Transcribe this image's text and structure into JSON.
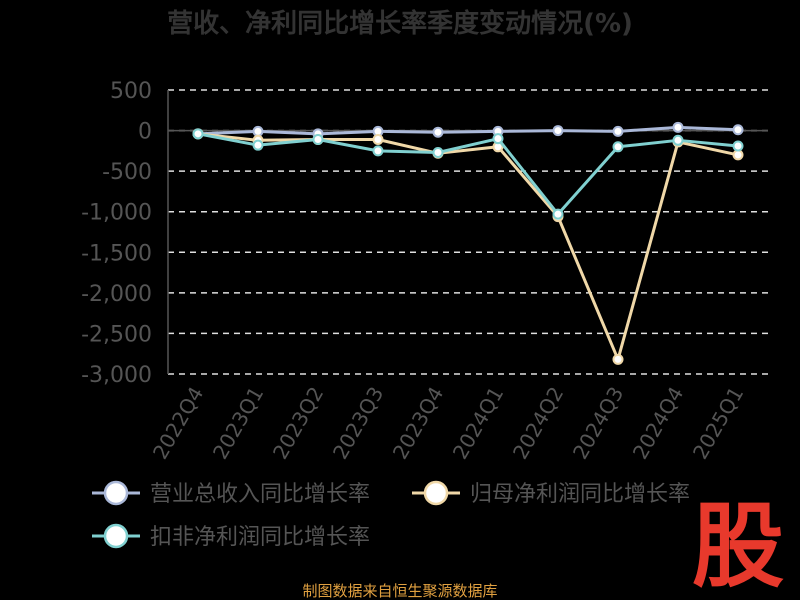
{
  "chart_data": {
    "type": "line",
    "title": "营收、净利同比增长率季度变动情况(%)",
    "categories": [
      "2022Q4",
      "2023Q1",
      "2023Q2",
      "2023Q3",
      "2023Q4",
      "2024Q1",
      "2024Q2",
      "2024Q3",
      "2024Q4",
      "2025Q1"
    ],
    "y_ticks": [
      "500",
      "0",
      "-500",
      "-1,000",
      "-1,500",
      "-2,000",
      "-2,500",
      "-3,000"
    ],
    "ylim": [
      -3000,
      500
    ],
    "grid": true,
    "legend_position": "bottom",
    "series": [
      {
        "name": "营业总收入同比增长率",
        "color": "#aab8d8",
        "values": [
          -40,
          -10,
          -40,
          -10,
          -20,
          -10,
          0,
          -10,
          40,
          10
        ]
      },
      {
        "name": "归母净利润同比增长率",
        "color": "#f0d8a8",
        "values": [
          -40,
          -120,
          -110,
          -110,
          -280,
          -200,
          -1060,
          -2820,
          -140,
          -300
        ]
      },
      {
        "name": "扣非净利润同比增长率",
        "color": "#80d0d0",
        "values": [
          -40,
          -180,
          -110,
          -250,
          -270,
          -100,
          -1030,
          -200,
          -120,
          -190
        ]
      }
    ]
  },
  "source": "制图数据来自恒生聚源数据库",
  "stamp": "股"
}
